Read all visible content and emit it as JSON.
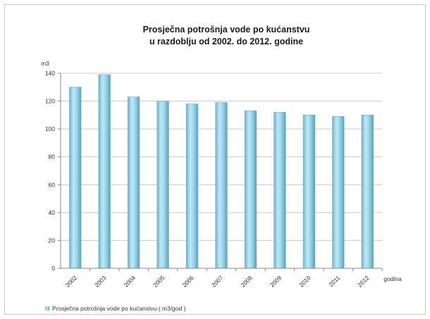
{
  "chart_data": {
    "type": "bar",
    "title_lines": [
      "Prosječna potrošnja vode po kućanstvu",
      "u razdoblju od 2002. do 2012. godine"
    ],
    "ylabel": "m3",
    "xlabel": "godina",
    "categories": [
      "2002",
      "2003",
      "2004",
      "2005",
      "2006",
      "2007",
      "2008",
      "2009",
      "2010",
      "2011",
      "2012"
    ],
    "series": [
      {
        "name": "Prosječna potrošnja vode po kućanstvu ( m3/god )",
        "values": [
          130,
          139,
          123,
          120,
          118,
          119,
          113,
          112,
          110,
          109,
          110
        ],
        "color": "#8fd1e6"
      }
    ],
    "ylim": [
      0,
      140
    ],
    "yticks": [
      0,
      20,
      40,
      60,
      80,
      100,
      120,
      140
    ],
    "grid": true,
    "legend_position": "bottom-left"
  }
}
